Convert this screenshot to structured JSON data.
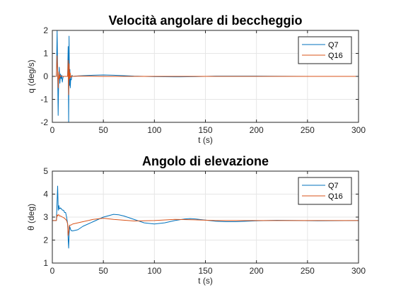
{
  "chart_data": [
    {
      "type": "line",
      "title": "Velocità angolare di beccheggio",
      "xlabel": "t (s)",
      "ylabel": "q (deg/s)",
      "xlim": [
        0,
        300
      ],
      "ylim": [
        -2,
        2
      ],
      "xticks": [
        0,
        50,
        100,
        150,
        200,
        250,
        300
      ],
      "xtick_labels": [
        "0",
        "50",
        "100",
        "150",
        "200",
        "250",
        "300"
      ],
      "yticks": [
        -2,
        -1,
        0,
        1,
        2
      ],
      "ytick_labels": [
        "-2",
        "-1",
        "0",
        "1",
        "2"
      ],
      "grid": true,
      "legend_position": "top-right",
      "series": [
        {
          "name": "Q7",
          "color": "#0072BD",
          "x": [
            0,
            4,
            4.7,
            5.2,
            5.7,
            6.2,
            6.8,
            7.4,
            8,
            8.6,
            9.2,
            9.8,
            10.4,
            11,
            12,
            13,
            14,
            15,
            15.5,
            16,
            16.4,
            16.8,
            17.2,
            17.6,
            18,
            18.6,
            19.2,
            20,
            25,
            30,
            40,
            50,
            60,
            70,
            80,
            90,
            100,
            120,
            140,
            160,
            200,
            250,
            300
          ],
          "y": [
            0,
            0,
            2.0,
            0.3,
            -1.7,
            -0.2,
            0.4,
            -0.3,
            0.1,
            -0.1,
            0.05,
            -0.25,
            -0.05,
            0,
            0,
            0,
            0,
            0,
            1.3,
            -2.0,
            1.75,
            -0.4,
            0.3,
            -0.5,
            -0.1,
            -0.15,
            0.05,
            0,
            0.02,
            0.03,
            0.05,
            0.06,
            0.05,
            0.03,
            0.01,
            0,
            -0.01,
            -0.02,
            -0.01,
            0.01,
            0.01,
            0,
            0
          ]
        },
        {
          "name": "Q16",
          "color": "#D95319",
          "x": [
            0,
            4,
            4.6,
            5.2,
            5.8,
            6.4,
            7,
            7.6,
            8.2,
            9,
            10,
            11,
            12,
            13,
            14,
            15,
            15.5,
            16,
            16.5,
            17,
            17.5,
            18,
            19,
            20,
            25,
            30,
            50,
            100,
            150,
            200,
            250,
            300
          ],
          "y": [
            0,
            0,
            0.9,
            0.15,
            -0.5,
            0.2,
            -0.1,
            0.05,
            0,
            0,
            0,
            0,
            0,
            0,
            0,
            0,
            0.7,
            -0.8,
            0.55,
            -0.1,
            0.15,
            -0.05,
            0.02,
            0,
            0.01,
            0.01,
            0,
            0,
            0,
            0,
            0,
            0
          ]
        }
      ]
    },
    {
      "type": "line",
      "title": "Angolo di elevazione",
      "xlabel": "t (s)",
      "ylabel": "θ (deg)",
      "xlim": [
        0,
        300
      ],
      "ylim": [
        1,
        5
      ],
      "xticks": [
        0,
        50,
        100,
        150,
        200,
        250,
        300
      ],
      "xtick_labels": [
        "0",
        "50",
        "100",
        "150",
        "200",
        "250",
        "300"
      ],
      "yticks": [
        1,
        2,
        3,
        4,
        5
      ],
      "ytick_labels": [
        "1",
        "2",
        "3",
        "4",
        "5"
      ],
      "grid": true,
      "legend_position": "top-right",
      "series": [
        {
          "name": "Q7",
          "color": "#0072BD",
          "x": [
            0,
            4,
            4.6,
            5.2,
            5.8,
            6.4,
            7,
            8,
            9,
            10,
            11,
            12,
            13,
            14,
            15,
            15.5,
            16,
            16.5,
            17,
            18,
            19,
            20,
            25,
            30,
            40,
            50,
            60,
            65,
            70,
            80,
            90,
            100,
            110,
            120,
            130,
            135,
            140,
            150,
            160,
            170,
            180,
            200,
            220,
            240,
            260,
            300
          ],
          "y": [
            2.85,
            2.85,
            3.6,
            4.35,
            3.3,
            3.5,
            3.35,
            3.4,
            3.35,
            3.3,
            3.3,
            3.2,
            3.2,
            3.0,
            2.7,
            2.05,
            1.65,
            2.3,
            2.6,
            2.45,
            2.4,
            2.4,
            2.45,
            2.6,
            2.8,
            3.0,
            3.12,
            3.1,
            3.05,
            2.9,
            2.75,
            2.7,
            2.75,
            2.85,
            2.92,
            2.93,
            2.92,
            2.87,
            2.82,
            2.8,
            2.8,
            2.84,
            2.86,
            2.85,
            2.84,
            2.85
          ]
        },
        {
          "name": "Q16",
          "color": "#D95319",
          "x": [
            0,
            4,
            4.6,
            5.2,
            5.8,
            6.4,
            7,
            8,
            10,
            12,
            13,
            14,
            15,
            15.5,
            16,
            16.5,
            17,
            18,
            20,
            25,
            30,
            40,
            50,
            60,
            80,
            100,
            120,
            140,
            160,
            200,
            250,
            300
          ],
          "y": [
            2.85,
            2.85,
            3.1,
            3.05,
            3.1,
            3.1,
            3.05,
            3.05,
            3.0,
            2.95,
            2.9,
            2.85,
            2.7,
            2.2,
            2.35,
            2.6,
            2.65,
            2.65,
            2.7,
            2.75,
            2.8,
            2.9,
            2.95,
            2.9,
            2.83,
            2.85,
            2.9,
            2.88,
            2.85,
            2.85,
            2.85,
            2.85
          ]
        }
      ]
    }
  ]
}
